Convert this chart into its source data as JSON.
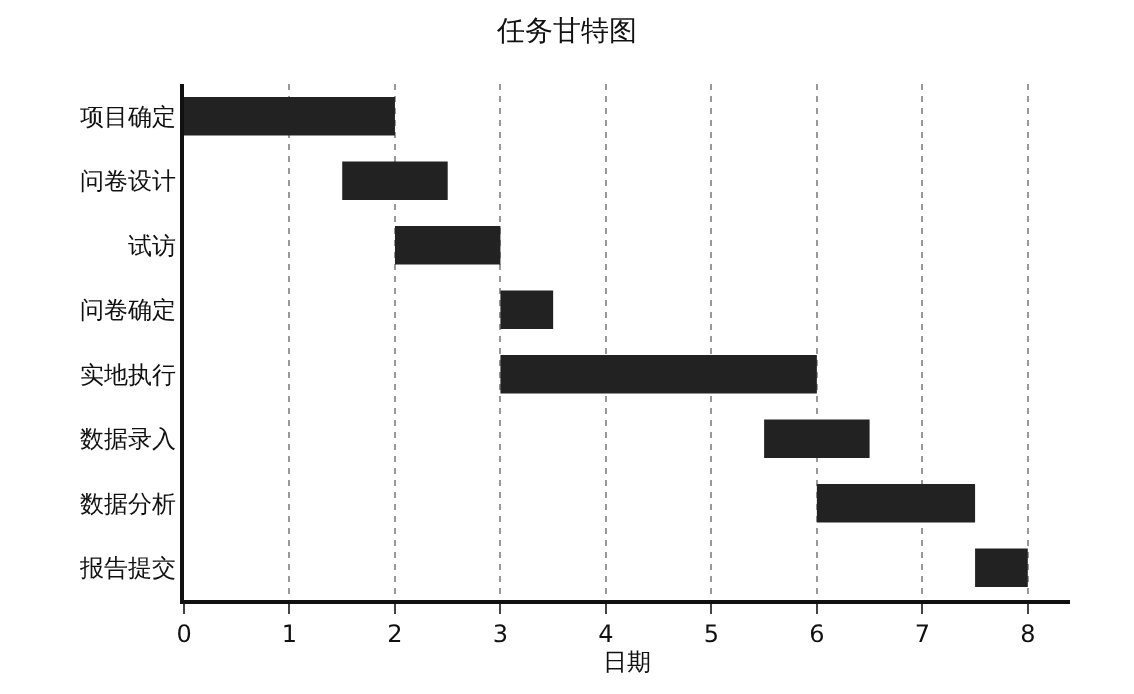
{
  "chart_data": {
    "type": "bar",
    "orientation": "horizontal",
    "title": "任务甘特图",
    "xlabel": "日期",
    "categories": [
      "项目确定",
      "问卷设计",
      "试访",
      "问卷确定",
      "实地执行",
      "数据录入",
      "数据分析",
      "报告提交"
    ],
    "base": [
      0,
      1.5,
      2,
      3,
      3,
      5.5,
      6,
      7.5
    ],
    "values": [
      2,
      1,
      1,
      0.5,
      3,
      1,
      1.5,
      0.5
    ],
    "color": "#222222",
    "xlim": [
      0,
      8.4
    ],
    "xticks": [
      0,
      1,
      2,
      3,
      4,
      5,
      6,
      7,
      8
    ],
    "grid": "x"
  }
}
